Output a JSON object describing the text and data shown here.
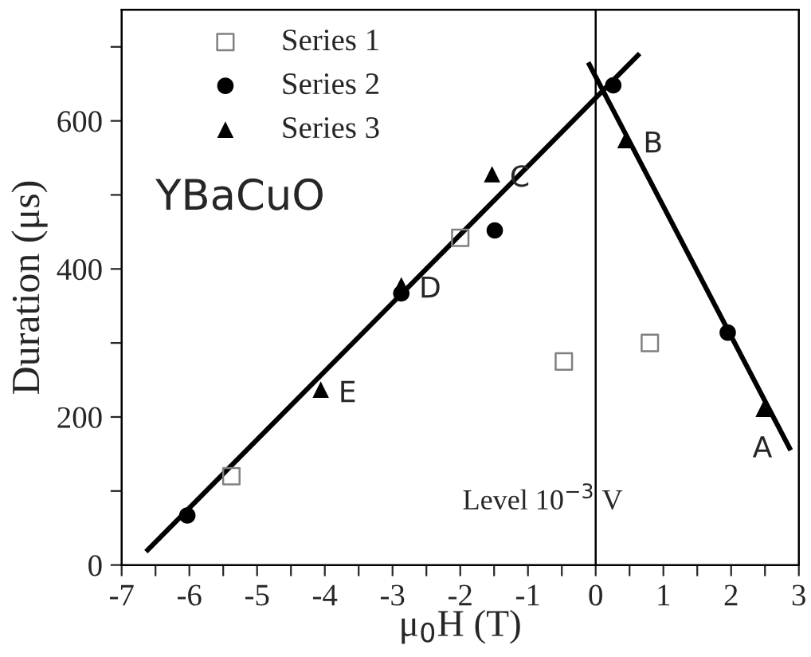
{
  "chart_data": {
    "type": "scatter",
    "xlabel": "μ$_{0}$H (T)",
    "ylabel": "Duration (μs)",
    "xlim": [
      -7,
      3
    ],
    "ylim": [
      0,
      750
    ],
    "xticks": [
      -7,
      {
        "value": -6.5,
        "label": null
      },
      -6,
      {
        "value": -5.5,
        "label": null
      },
      -5,
      {
        "value": -4.5,
        "label": null
      },
      -4,
      {
        "value": -3.5,
        "label": null
      },
      -3,
      {
        "value": -2.5,
        "label": null
      },
      -2,
      {
        "value": -1.5,
        "label": null
      },
      -1,
      {
        "value": -0.5,
        "label": null
      },
      0,
      {
        "value": 0.5,
        "label": null
      },
      1,
      {
        "value": 1.5,
        "label": null
      },
      2,
      {
        "value": 2.5,
        "label": null
      },
      3
    ],
    "yticks": [
      0,
      {
        "value": 100,
        "label": null
      },
      200,
      {
        "value": 300,
        "label": null
      },
      400,
      {
        "value": 500,
        "label": null
      },
      600,
      {
        "value": 700,
        "label": null
      }
    ],
    "legend": "top left",
    "grid": false,
    "series": [
      {
        "name": "Series 1",
        "marker": "square",
        "color": "#808080",
        "x": [
          -5.38,
          -2.0,
          -0.47,
          0.8
        ],
        "values": [
          120,
          442,
          275,
          300
        ]
      },
      {
        "name": "Series 2",
        "marker": "circle",
        "color": "#000000",
        "x": [
          -6.03,
          -2.87,
          -1.49,
          0.26,
          1.95
        ],
        "values": [
          67,
          367,
          452,
          648,
          314
        ]
      },
      {
        "name": "Series 3",
        "marker": "triangle",
        "color": "#000000",
        "x": [
          -4.06,
          -2.87,
          -1.53,
          0.44,
          2.48
        ],
        "values": [
          237,
          378,
          528,
          574,
          211
        ]
      },
      {
        "type": "line",
        "marker": "none",
        "color": "#000000",
        "x": [
          -6.64,
          0.65
        ],
        "values": [
          18,
          691
        ]
      },
      {
        "type": "line",
        "marker": "none",
        "color": "#000000",
        "x": [
          -0.11,
          2.88
        ],
        "values": [
          679,
          155
        ]
      }
    ],
    "ref_lines": [
      {
        "axis": "x",
        "value": 0,
        "color": "#000000"
      }
    ],
    "annotations": [
      "YBaCuO",
      "Level 10$^{−3}$ V",
      {
        "text": "A",
        "x": 2.48,
        "y": 211
      },
      {
        "text": "B",
        "x": 0.44,
        "y": 574
      },
      {
        "text": "C",
        "x": -1.53,
        "y": 528
      },
      {
        "text": "D",
        "x": -2.87,
        "y": 378
      },
      {
        "text": "E",
        "x": -4.06,
        "y": 237
      }
    ]
  }
}
